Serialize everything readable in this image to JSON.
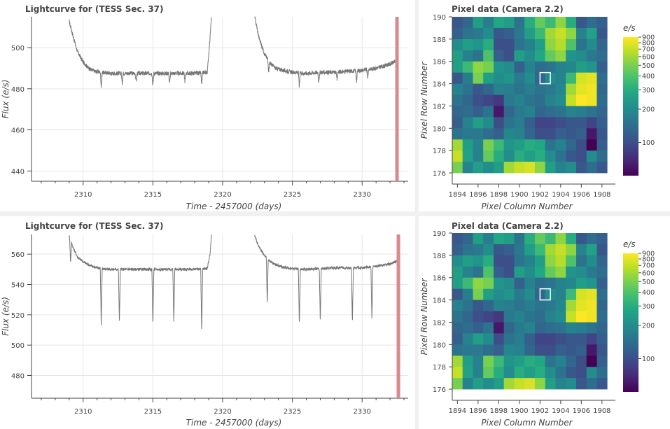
{
  "colors": {
    "curve": "#777777",
    "marker": "#d98a8a",
    "grid": "#e6e6e6",
    "panel": "#ffffff",
    "page": "#f1f1f1"
  },
  "panels": [
    {
      "lightcurve": {
        "title": "Lightcurve for  (TESS Sec. 37)",
        "xlabel": "Time - 2457000 (days)",
        "ylabel": "Flux (e/s)",
        "xticks": [
          "2310",
          "2315",
          "2320",
          "2325",
          "2330"
        ],
        "yticks": [
          "440",
          "460",
          "480",
          "500"
        ]
      },
      "pixels": {
        "title": "Pixel data (Camera 2.2)",
        "xlabel": "Pixel Column Number",
        "ylabel": "Pixel Row Number",
        "xticks": [
          "1894",
          "1896",
          "1898",
          "1900",
          "1902",
          "1904",
          "1906",
          "1908"
        ],
        "yticks": [
          "176",
          "178",
          "180",
          "182",
          "184",
          "186",
          "188",
          "190"
        ],
        "colorbar_title": "e/s",
        "colorbar_ticks": [
          "900",
          "800",
          "700",
          "600",
          "500",
          "400",
          "300",
          "200",
          "100"
        ]
      }
    },
    {
      "lightcurve": {
        "title": "Lightcurve for  (TESS Sec. 37)",
        "xlabel": "Time - 2457000 (days)",
        "ylabel": "Flux (e/s)",
        "xticks": [
          "2310",
          "2315",
          "2320",
          "2325",
          "2330"
        ],
        "yticks": [
          "480",
          "500",
          "520",
          "540",
          "560"
        ]
      },
      "pixels": {
        "title": "Pixel data (Camera 2.2)",
        "xlabel": "Pixel Column Number",
        "ylabel": "Pixel Row Number",
        "xticks": [
          "1894",
          "1896",
          "1898",
          "1900",
          "1902",
          "1904",
          "1906",
          "1908"
        ],
        "yticks": [
          "176",
          "178",
          "180",
          "182",
          "184",
          "186",
          "188",
          "190"
        ],
        "colorbar_title": "e/s",
        "colorbar_ticks": [
          "900",
          "800",
          "700",
          "600",
          "500",
          "400",
          "300",
          "200",
          "100"
        ]
      }
    }
  ],
  "chart_data": [
    {
      "type": "line",
      "title": "Lightcurve for  (TESS Sec. 37)",
      "xlabel": "Time - 2457000 (days)",
      "ylabel": "Flux (e/s)",
      "xlim": [
        2306.3,
        2333.3
      ],
      "ylim": [
        435,
        515
      ],
      "marker_x": 2332.5,
      "segments": [
        {
          "t_start": 2309.0,
          "t_end": 2319.2,
          "x": [
            2309.0,
            2309.3,
            2309.6,
            2310.0,
            2310.4,
            2310.8,
            2311.3,
            2312.0,
            2313.0,
            2314.0,
            2315.0,
            2316.0,
            2317.0,
            2318.0,
            2318.9,
            2319.1,
            2319.2
          ],
          "y": [
            513,
            505,
            498,
            493,
            490,
            488.5,
            488,
            487.5,
            487.5,
            487.5,
            487.5,
            487.5,
            487.5,
            487.5,
            488,
            505,
            515
          ]
        },
        {
          "t_start": 2322.3,
          "t_end": 2332.6,
          "x": [
            2322.3,
            2322.6,
            2323.0,
            2323.4,
            2323.8,
            2324.3,
            2325.0,
            2326.0,
            2327.0,
            2328.0,
            2329.0,
            2330.0,
            2331.0,
            2332.0,
            2332.6
          ],
          "y": [
            515,
            505,
            497,
            492.5,
            490,
            489,
            488,
            487.5,
            488,
            488,
            488.5,
            489,
            490,
            492,
            494
          ]
        }
      ],
      "dips": [
        {
          "t": 2311.3,
          "depth": 7
        },
        {
          "t": 2312.8,
          "depth": 5
        },
        {
          "t": 2313.8,
          "depth": 4
        },
        {
          "t": 2315.0,
          "depth": 6
        },
        {
          "t": 2316.2,
          "depth": 5
        },
        {
          "t": 2317.3,
          "depth": 4
        },
        {
          "t": 2318.5,
          "depth": 6
        },
        {
          "t": 2323.3,
          "depth": 5
        },
        {
          "t": 2325.5,
          "depth": 7
        },
        {
          "t": 2326.9,
          "depth": 5
        },
        {
          "t": 2328.2,
          "depth": 4
        },
        {
          "t": 2329.6,
          "depth": 5
        },
        {
          "t": 2330.4,
          "depth": 4
        }
      ],
      "noise": 1.0
    },
    {
      "type": "line",
      "title": "Lightcurve for  (TESS Sec. 37)",
      "xlabel": "Time - 2457000 (days)",
      "ylabel": "Flux (e/s)",
      "xlim": [
        2306.3,
        2333.3
      ],
      "ylim": [
        465,
        573
      ],
      "marker_x": 2332.6,
      "segments": [
        {
          "t_start": 2309.0,
          "t_end": 2319.2,
          "x": [
            2309.0,
            2309.3,
            2309.6,
            2310.0,
            2310.4,
            2310.8,
            2311.3,
            2312.0,
            2313.0,
            2314.0,
            2315.0,
            2316.0,
            2317.0,
            2318.0,
            2318.9,
            2319.1,
            2319.2
          ],
          "y": [
            572,
            564,
            558,
            555,
            553,
            551.5,
            550.5,
            550,
            550,
            550,
            550,
            550,
            550,
            550,
            550.5,
            560,
            573
          ]
        },
        {
          "t_start": 2322.3,
          "t_end": 2332.6,
          "x": [
            2322.3,
            2322.6,
            2323.0,
            2323.4,
            2323.8,
            2324.3,
            2325.0,
            2326.0,
            2327.0,
            2328.0,
            2329.0,
            2330.0,
            2331.0,
            2332.0,
            2332.6
          ],
          "y": [
            572,
            565,
            559,
            555,
            553,
            551.5,
            550.5,
            550,
            550.5,
            551,
            551,
            551,
            552,
            553.5,
            556
          ]
        }
      ],
      "dips": [
        {
          "t": 2309.1,
          "depth": 15
        },
        {
          "t": 2311.3,
          "depth": 38
        },
        {
          "t": 2312.6,
          "depth": 35
        },
        {
          "t": 2315.0,
          "depth": 37
        },
        {
          "t": 2316.5,
          "depth": 35
        },
        {
          "t": 2318.5,
          "depth": 42
        },
        {
          "t": 2323.2,
          "depth": 30
        },
        {
          "t": 2325.5,
          "depth": 38
        },
        {
          "t": 2327.0,
          "depth": 36
        },
        {
          "t": 2329.3,
          "depth": 36
        },
        {
          "t": 2330.7,
          "depth": 35
        }
      ],
      "noise": 0.9
    },
    {
      "type": "heatmap",
      "title": "Pixel data (Camera 2.2)",
      "xlabel": "Pixel Column Number",
      "ylabel": "Pixel Row Number",
      "xlim": [
        1893.5,
        1909.3
      ],
      "ylim": [
        175,
        190
      ],
      "columns_start": 1894,
      "rows_start_top": 189,
      "colorbar": {
        "title": "e/s",
        "scale": "log",
        "range": [
          50,
          900
        ]
      },
      "selected_pixel": [
        1902,
        184
      ],
      "values_top_to_bottom": [
        [
          110,
          130,
          250,
          170,
          280,
          250,
          150,
          300,
          450,
          350,
          550,
          300,
          110,
          140,
          120
        ],
        [
          120,
          150,
          160,
          200,
          110,
          120,
          160,
          250,
          350,
          600,
          700,
          550,
          180,
          260,
          110
        ],
        [
          200,
          250,
          220,
          300,
          100,
          100,
          150,
          180,
          250,
          550,
          650,
          400,
          150,
          200,
          130
        ],
        [
          250,
          180,
          150,
          400,
          120,
          100,
          250,
          200,
          280,
          450,
          550,
          220,
          200,
          160,
          140
        ],
        [
          250,
          350,
          550,
          500,
          220,
          200,
          120,
          180,
          140,
          150,
          180,
          190,
          250,
          220,
          120
        ],
        [
          110,
          170,
          500,
          250,
          200,
          220,
          160,
          200,
          130,
          200,
          180,
          350,
          750,
          800,
          140
        ],
        [
          180,
          150,
          110,
          130,
          180,
          170,
          150,
          170,
          150,
          160,
          190,
          600,
          800,
          850,
          130
        ],
        [
          150,
          130,
          100,
          90,
          80,
          160,
          180,
          150,
          140,
          180,
          200,
          700,
          900,
          850,
          140
        ],
        [
          130,
          140,
          120,
          150,
          60,
          130,
          160,
          180,
          130,
          140,
          150,
          180,
          170,
          150,
          130
        ],
        [
          120,
          180,
          250,
          200,
          100,
          150,
          170,
          120,
          90,
          90,
          100,
          110,
          110,
          90,
          120
        ],
        [
          150,
          160,
          160,
          140,
          120,
          190,
          180,
          130,
          100,
          100,
          120,
          110,
          120,
          60,
          110
        ],
        [
          600,
          250,
          180,
          500,
          350,
          220,
          250,
          300,
          280,
          150,
          180,
          130,
          100,
          50,
          120
        ],
        [
          700,
          260,
          180,
          450,
          300,
          200,
          300,
          250,
          300,
          200,
          150,
          110,
          100,
          200,
          140
        ],
        [
          500,
          180,
          250,
          200,
          250,
          600,
          700,
          750,
          550,
          250,
          180,
          200,
          110,
          140,
          110
        ]
      ]
    }
  ]
}
